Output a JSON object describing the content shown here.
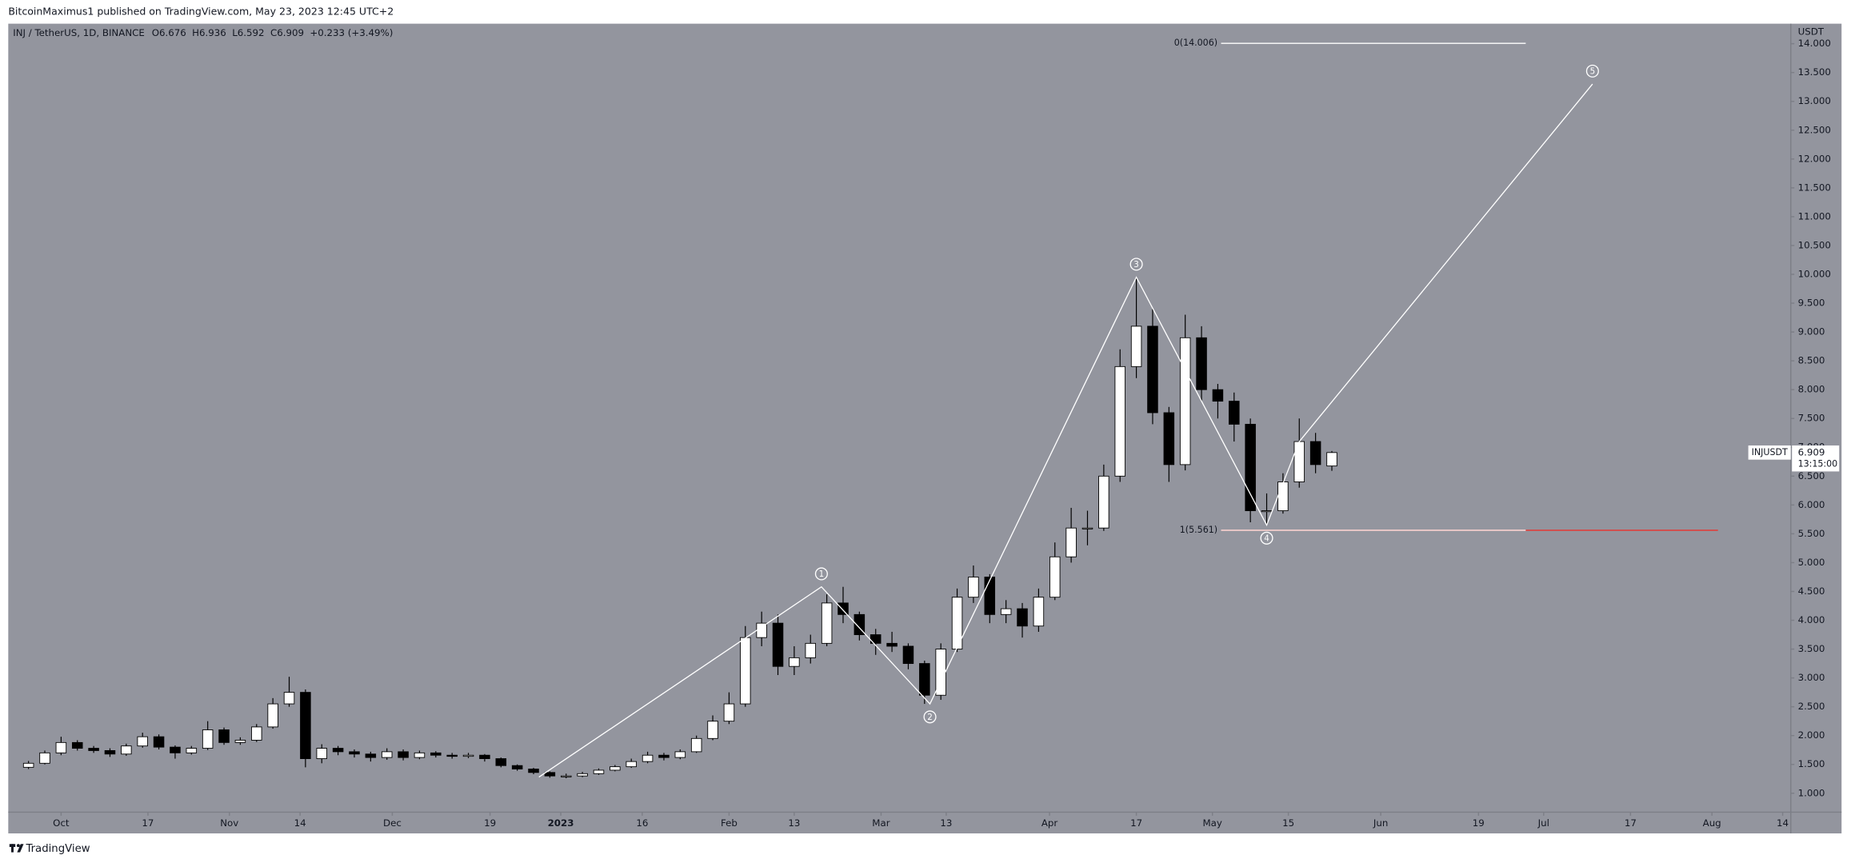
{
  "header": {
    "published": "BitcoinMaximus1 published on TradingView.com, May 23, 2023 12:45 UTC+2"
  },
  "legend": {
    "symbol": "INJ / TetherUS, 1D, BINANCE",
    "ohlc": [
      {
        "key": "O",
        "value": 6.676
      },
      {
        "key": "H",
        "value": 6.936
      },
      {
        "key": "L",
        "value": 6.592
      },
      {
        "key": "C",
        "value": 6.909
      }
    ],
    "change": "+0.233 (+3.49%)"
  },
  "price_tag": {
    "symbol": "INJUSDT",
    "value": 6.909,
    "countdown": "13:15:00"
  },
  "footer": {
    "brand": "TradingView"
  },
  "chart_data": {
    "type": "candlestick",
    "y_unit": "USDT",
    "up_color": "#ffffff",
    "down_color": "#000000",
    "background": "#93959e",
    "xlim": [
      -1.17,
      108.17
    ],
    "xticks": [
      {
        "value": 2,
        "label": "Oct"
      },
      {
        "value": 7.33,
        "label": "17"
      },
      {
        "value": 12.33,
        "label": "Nov"
      },
      {
        "value": 16.67,
        "label": "14"
      },
      {
        "value": 22.33,
        "label": "Dec"
      },
      {
        "value": 28.33,
        "label": "19"
      },
      {
        "value": 32.67,
        "label": "2023"
      },
      {
        "value": 37.67,
        "label": "16"
      },
      {
        "value": 43,
        "label": "Feb"
      },
      {
        "value": 47,
        "label": "13"
      },
      {
        "value": 52.33,
        "label": "Mar"
      },
      {
        "value": 56.33,
        "label": "13"
      },
      {
        "value": 62.67,
        "label": "Apr"
      },
      {
        "value": 68,
        "label": "17"
      },
      {
        "value": 72.67,
        "label": "May"
      },
      {
        "value": 77.33,
        "label": "15"
      },
      {
        "value": 83,
        "label": "Jun"
      },
      {
        "value": 89,
        "label": "19"
      },
      {
        "value": 93,
        "label": "Jul"
      },
      {
        "value": 98.33,
        "label": "17"
      },
      {
        "value": 103.33,
        "label": "Aug"
      },
      {
        "value": 107.67,
        "label": "14"
      }
    ],
    "ylim": [
      0.672,
      14.347
    ],
    "yticks": [
      {
        "value": 1,
        "label": "1.000"
      },
      {
        "value": 1.5,
        "label": "1.500"
      },
      {
        "value": 2,
        "label": "2.000"
      },
      {
        "value": 2.5,
        "label": "2.500"
      },
      {
        "value": 3,
        "label": "3.000"
      },
      {
        "value": 3.5,
        "label": "3.500"
      },
      {
        "value": 4,
        "label": "4.000"
      },
      {
        "value": 4.5,
        "label": "4.500"
      },
      {
        "value": 5,
        "label": "5.000"
      },
      {
        "value": 5.5,
        "label": "5.500"
      },
      {
        "value": 6,
        "label": "6.000"
      },
      {
        "value": 6.5,
        "label": "6.500"
      },
      {
        "value": 7,
        "label": "7.000"
      },
      {
        "value": 7.5,
        "label": "7.500"
      },
      {
        "value": 8,
        "label": "8.000"
      },
      {
        "value": 8.5,
        "label": "8.500"
      },
      {
        "value": 9,
        "label": "9.000"
      },
      {
        "value": 9.5,
        "label": "9.500"
      },
      {
        "value": 10,
        "label": "10.000"
      },
      {
        "value": 10.5,
        "label": "10.500"
      },
      {
        "value": 11,
        "label": "11.000"
      },
      {
        "value": 11.5,
        "label": "11.500"
      },
      {
        "value": 12,
        "label": "12.000"
      },
      {
        "value": 12.5,
        "label": "12.500"
      },
      {
        "value": 13,
        "label": "13.000"
      },
      {
        "value": 13.5,
        "label": "13.500"
      },
      {
        "value": 14,
        "label": "14.000"
      }
    ],
    "series": [
      {
        "name": "INJUSDT",
        "open": [
          1.45,
          1.52,
          1.7,
          1.88,
          1.78,
          1.74,
          1.68,
          1.82,
          1.98,
          1.8,
          1.7,
          1.78,
          2.1,
          1.88,
          1.92,
          2.15,
          2.55,
          2.75,
          1.6,
          1.78,
          1.72,
          1.68,
          1.62,
          1.72,
          1.62,
          1.7,
          1.66,
          1.64,
          1.66,
          1.6,
          1.48,
          1.42,
          1.36,
          1.3,
          1.3,
          1.34,
          1.4,
          1.46,
          1.55,
          1.66,
          1.62,
          1.72,
          1.95,
          2.25,
          2.55,
          3.7,
          3.95,
          3.2,
          3.35,
          3.6,
          4.3,
          4.1,
          3.75,
          3.6,
          3.55,
          3.25,
          2.7,
          3.5,
          4.4,
          4.75,
          4.1,
          4.2,
          3.9,
          4.4,
          5.1,
          5.6,
          5.6,
          6.5,
          8.4,
          9.1,
          7.6,
          6.7,
          8.9,
          8.0,
          7.8,
          7.4,
          5.9,
          5.9,
          6.4,
          7.1,
          6.676
        ],
        "high": [
          1.56,
          1.74,
          1.98,
          1.92,
          1.82,
          1.78,
          1.86,
          2.05,
          2.02,
          1.83,
          1.82,
          2.25,
          2.14,
          1.97,
          2.2,
          2.65,
          3.02,
          2.8,
          1.85,
          1.82,
          1.76,
          1.72,
          1.78,
          1.76,
          1.74,
          1.73,
          1.7,
          1.7,
          1.68,
          1.62,
          1.5,
          1.44,
          1.38,
          1.34,
          1.37,
          1.43,
          1.49,
          1.6,
          1.72,
          1.7,
          1.76,
          2.0,
          2.35,
          2.75,
          3.9,
          4.15,
          4.1,
          3.55,
          3.75,
          4.45,
          4.58,
          4.15,
          3.85,
          3.8,
          3.6,
          3.3,
          3.6,
          4.55,
          4.95,
          4.8,
          4.35,
          4.3,
          4.55,
          5.35,
          5.95,
          5.9,
          6.7,
          8.7,
          9.95,
          9.4,
          7.7,
          9.3,
          9.1,
          8.1,
          7.95,
          7.5,
          6.2,
          6.55,
          7.5,
          7.25,
          6.936
        ],
        "low": [
          1.42,
          1.5,
          1.66,
          1.74,
          1.7,
          1.63,
          1.65,
          1.79,
          1.76,
          1.6,
          1.67,
          1.75,
          1.84,
          1.84,
          1.89,
          2.12,
          2.5,
          1.45,
          1.52,
          1.66,
          1.62,
          1.55,
          1.58,
          1.57,
          1.59,
          1.62,
          1.6,
          1.61,
          1.55,
          1.45,
          1.39,
          1.33,
          1.27,
          1.26,
          1.28,
          1.32,
          1.38,
          1.44,
          1.52,
          1.57,
          1.59,
          1.7,
          1.92,
          2.2,
          2.5,
          3.55,
          3.05,
          3.05,
          3.25,
          3.55,
          3.95,
          3.65,
          3.4,
          3.45,
          3.15,
          2.55,
          2.62,
          3.45,
          4.3,
          3.95,
          3.95,
          3.7,
          3.8,
          4.35,
          5.0,
          5.3,
          5.55,
          6.4,
          8.2,
          7.4,
          6.4,
          6.6,
          7.8,
          7.5,
          7.1,
          5.7,
          5.65,
          5.85,
          6.3,
          6.55,
          6.592
        ],
        "close": [
          1.52,
          1.7,
          1.88,
          1.78,
          1.74,
          1.68,
          1.82,
          1.98,
          1.8,
          1.7,
          1.78,
          2.1,
          1.88,
          1.92,
          2.15,
          2.55,
          2.75,
          1.6,
          1.78,
          1.72,
          1.68,
          1.62,
          1.72,
          1.62,
          1.7,
          1.66,
          1.64,
          1.66,
          1.6,
          1.48,
          1.42,
          1.36,
          1.3,
          1.3,
          1.34,
          1.4,
          1.46,
          1.55,
          1.66,
          1.62,
          1.72,
          1.95,
          2.25,
          2.55,
          3.7,
          3.95,
          3.2,
          3.35,
          3.6,
          4.3,
          4.1,
          3.75,
          3.6,
          3.55,
          3.25,
          2.7,
          3.5,
          4.4,
          4.75,
          4.1,
          4.2,
          3.9,
          4.4,
          5.1,
          5.6,
          5.6,
          6.5,
          8.4,
          9.1,
          7.6,
          6.7,
          8.9,
          8.0,
          7.8,
          7.4,
          5.9,
          5.9,
          6.4,
          7.1,
          6.7,
          6.909
        ]
      }
    ],
    "waves": {
      "color": "#ffffff",
      "labels": [
        null,
        "1",
        "2",
        "3",
        "4",
        null,
        "5"
      ],
      "x": [
        31.33,
        48.67,
        55.33,
        68,
        76,
        78,
        96
      ],
      "y": [
        1.28,
        4.58,
        2.55,
        9.95,
        5.65,
        7.1,
        13.3
      ]
    },
    "fib_levels": [
      {
        "value": 14.006,
        "value_label": "0(14.006)",
        "x_start": 73.2,
        "x_end": 91.9,
        "color": "#ffffff"
      },
      {
        "value": 5.561,
        "value_label": "1(5.561)",
        "x_start": 73.2,
        "x_end": 91.9,
        "color": "#ffffff",
        "extension_end": 103.7,
        "extension_color": "#e53935"
      }
    ]
  }
}
